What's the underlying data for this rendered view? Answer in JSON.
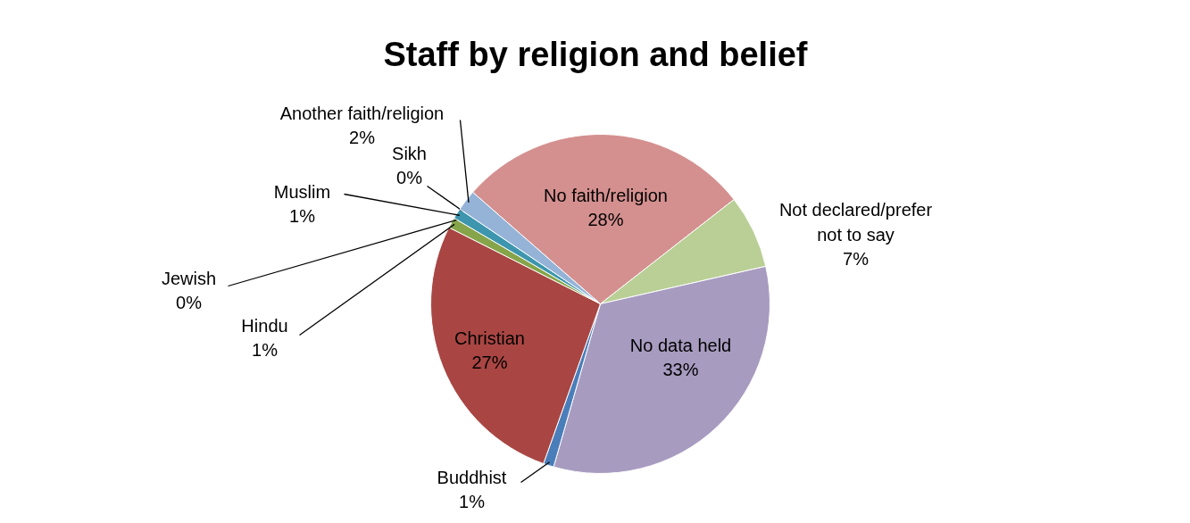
{
  "chart_data": {
    "type": "pie",
    "title": "Staff by religion and belief",
    "categories": [
      "No faith/religion",
      "Not declared/prefer not to say",
      "No data held",
      "Buddhist",
      "Christian",
      "Hindu",
      "Jewish",
      "Muslim",
      "Sikh",
      "Another faith/religion"
    ],
    "values": [
      28,
      7,
      33,
      1,
      27,
      1,
      0,
      1,
      0,
      2
    ],
    "colors": [
      "#d4908f",
      "#b9cf96",
      "#a89bc0",
      "#4a7eba",
      "#a94643",
      "#86a44a",
      "#6e548d",
      "#3d96ae",
      "#da8137",
      "#95b3d7"
    ],
    "value_labels": [
      "28%",
      "7%",
      "33%",
      "1%",
      "27%",
      "1%",
      "0%",
      "1%",
      "0%",
      "2%"
    ]
  }
}
